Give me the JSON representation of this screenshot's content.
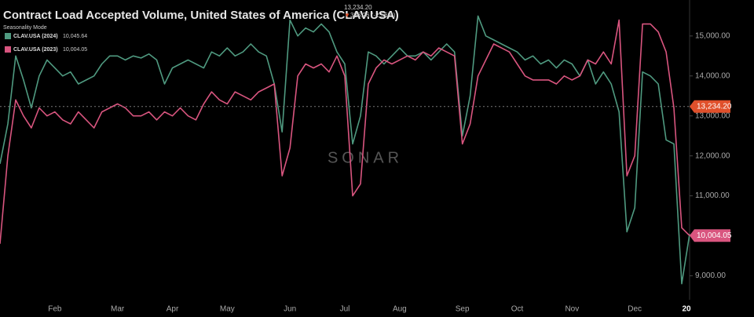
{
  "chart_data": {
    "type": "line",
    "title": "Contract Load Accepted Volume, United States of America (CLAV.USA)",
    "header_value": "13,234.20",
    "header_change": "336.26 (-2.56%)",
    "legend_title": "Seasonality Mode",
    "watermark": "SONAR",
    "categories": [
      null,
      null,
      null,
      null,
      null,
      null,
      null,
      "Feb",
      null,
      null,
      null,
      null,
      null,
      null,
      null,
      "Mar",
      null,
      null,
      null,
      null,
      null,
      null,
      "Apr",
      null,
      null,
      null,
      null,
      null,
      null,
      "May",
      null,
      null,
      null,
      null,
      null,
      null,
      null,
      "Jun",
      null,
      null,
      null,
      null,
      null,
      null,
      "Jul",
      null,
      null,
      null,
      null,
      null,
      null,
      "Aug",
      null,
      null,
      null,
      null,
      null,
      null,
      null,
      "Sep",
      null,
      null,
      null,
      null,
      null,
      null,
      "Oct",
      null,
      null,
      null,
      null,
      null,
      null,
      "Nov",
      null,
      null,
      null,
      null,
      null,
      null,
      null,
      "Dec",
      null,
      null,
      null,
      null,
      null,
      null,
      "20"
    ],
    "series": [
      {
        "name": "CLAV.USA (2024)",
        "legend_value": "10,045.64",
        "color": "#4f9a80",
        "values": [
          11800,
          12800,
          14500,
          13900,
          13200,
          14000,
          14400,
          14200,
          14000,
          14100,
          13800,
          13900,
          14000,
          14300,
          14500,
          14500,
          14400,
          14500,
          14450,
          14550,
          14400,
          13800,
          14200,
          14300,
          14400,
          14300,
          14200,
          14600,
          14500,
          14700,
          14500,
          14600,
          14800,
          14600,
          14500,
          13800,
          12600,
          15400,
          15000,
          15200,
          15100,
          15300,
          15100,
          14600,
          14300,
          12300,
          13000,
          14600,
          14500,
          14300,
          14500,
          14700,
          14500,
          14500,
          14600,
          14400,
          14600,
          14800,
          14600,
          12500,
          13500,
          15500,
          15000,
          14900,
          14800,
          14700,
          14600,
          14400,
          14500,
          14300,
          14400,
          14200,
          14400,
          14300,
          14000,
          14400,
          13800,
          14100,
          13800,
          13100,
          10100,
          10700,
          14100,
          14000,
          13800,
          12400,
          12300,
          8800,
          10045.64
        ]
      },
      {
        "name": "CLAV.USA (2023)",
        "legend_value": "10,004.05",
        "color": "#d9557f",
        "values": [
          9800,
          12000,
          13400,
          13000,
          12700,
          13200,
          13000,
          13100,
          12900,
          12800,
          13100,
          12900,
          12700,
          13100,
          13200,
          13300,
          13200,
          13000,
          13000,
          13100,
          12900,
          13100,
          13000,
          13200,
          13000,
          12900,
          13300,
          13600,
          13400,
          13300,
          13600,
          13500,
          13400,
          13600,
          13700,
          13800,
          11500,
          12200,
          14000,
          14300,
          14200,
          14300,
          14100,
          14500,
          14000,
          11000,
          11300,
          13800,
          14200,
          14400,
          14300,
          14400,
          14500,
          14400,
          14600,
          14500,
          14700,
          14600,
          14500,
          12300,
          12800,
          14000,
          14400,
          14800,
          14700,
          14600,
          14300,
          14000,
          13900,
          13900,
          13900,
          13800,
          14000,
          13900,
          14000,
          14400,
          14300,
          14600,
          14300,
          15400,
          11500,
          12000,
          15300,
          15300,
          15100,
          14600,
          13200,
          10200,
          10004.05
        ]
      }
    ],
    "ylim": [
      8400,
      15900
    ],
    "yticks": [
      {
        "value": 9000,
        "label": "9,000.00"
      },
      {
        "value": 10000,
        "label": "10,000.00"
      },
      {
        "value": 11000,
        "label": "11,000.00"
      },
      {
        "value": 12000,
        "label": "12,000.00"
      },
      {
        "value": 13000,
        "label": "13,000.00"
      },
      {
        "value": 14000,
        "label": "14,000.00"
      },
      {
        "value": 15000,
        "label": "15,000.00"
      }
    ],
    "markers": [
      {
        "value": 13234.2,
        "label": "13,234.20",
        "color": "#e0502b"
      },
      {
        "value": 10004.05,
        "label": "10,004.05",
        "color": "#d9557f"
      }
    ]
  }
}
